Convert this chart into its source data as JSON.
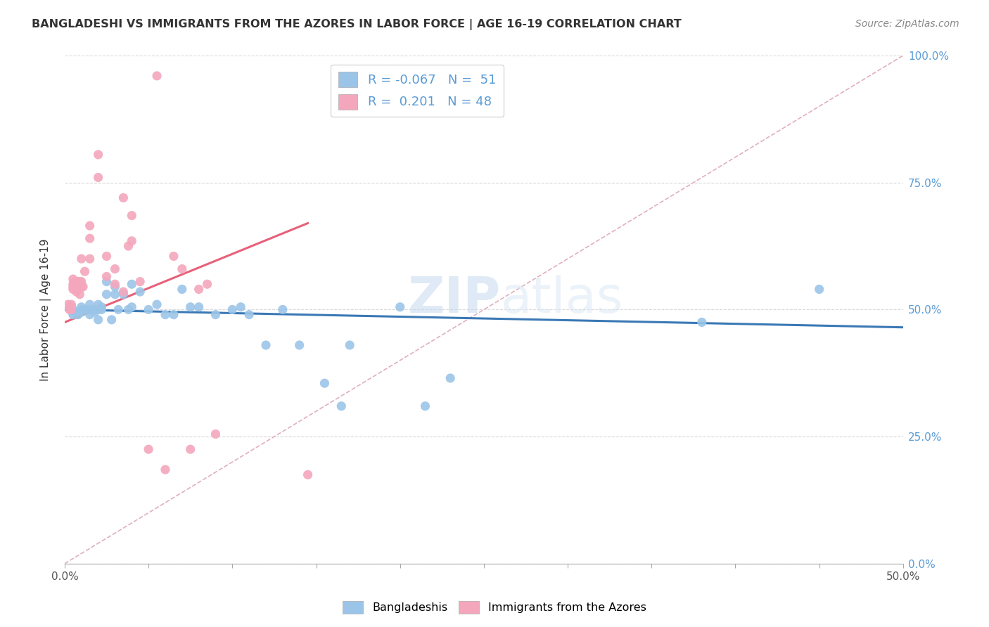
{
  "title": "BANGLADESHI VS IMMIGRANTS FROM THE AZORES IN LABOR FORCE | AGE 16-19 CORRELATION CHART",
  "source": "Source: ZipAtlas.com",
  "ylabel": "In Labor Force | Age 16-19",
  "xlim": [
    0.0,
    0.5
  ],
  "ylim": [
    0.0,
    1.0
  ],
  "xticks": [
    0.0,
    0.1,
    0.2,
    0.3,
    0.4,
    0.5
  ],
  "xtick_labels": [
    "0.0%",
    "",
    "",
    "",
    "",
    "50.0%"
  ],
  "ytick_labels_right": [
    "0.0%",
    "25.0%",
    "50.0%",
    "75.0%",
    "100.0%"
  ],
  "ytick_positions_right": [
    0.0,
    0.25,
    0.5,
    0.75,
    1.0
  ],
  "blue_color": "#9bc5e8",
  "pink_color": "#f4a7bc",
  "blue_line_color": "#3a78b5",
  "pink_line_color": "#e8607a",
  "diag_line_color": "#e0b0bc",
  "watermark_zip": "ZIP",
  "watermark_atlas": "atlas",
  "blue_scatter_x": [
    0.005,
    0.005,
    0.005,
    0.008,
    0.01,
    0.01,
    0.01,
    0.012,
    0.015,
    0.015,
    0.015,
    0.018,
    0.018,
    0.02,
    0.02,
    0.02,
    0.022,
    0.022,
    0.025,
    0.025,
    0.028,
    0.03,
    0.03,
    0.032,
    0.035,
    0.038,
    0.04,
    0.04,
    0.045,
    0.05,
    0.055,
    0.06,
    0.065,
    0.07,
    0.075,
    0.08,
    0.09,
    0.1,
    0.105,
    0.11,
    0.12,
    0.13,
    0.14,
    0.155,
    0.165,
    0.17,
    0.2,
    0.215,
    0.23,
    0.38,
    0.45
  ],
  "blue_scatter_y": [
    0.49,
    0.495,
    0.5,
    0.49,
    0.5,
    0.505,
    0.495,
    0.5,
    0.5,
    0.49,
    0.51,
    0.495,
    0.5,
    0.48,
    0.5,
    0.51,
    0.5,
    0.505,
    0.555,
    0.53,
    0.48,
    0.545,
    0.53,
    0.5,
    0.53,
    0.5,
    0.55,
    0.505,
    0.535,
    0.5,
    0.51,
    0.49,
    0.49,
    0.54,
    0.505,
    0.505,
    0.49,
    0.5,
    0.505,
    0.49,
    0.43,
    0.5,
    0.43,
    0.355,
    0.31,
    0.43,
    0.505,
    0.31,
    0.365,
    0.475,
    0.54
  ],
  "pink_scatter_x": [
    0.002,
    0.003,
    0.003,
    0.003,
    0.004,
    0.004,
    0.004,
    0.005,
    0.005,
    0.005,
    0.005,
    0.006,
    0.007,
    0.008,
    0.008,
    0.008,
    0.009,
    0.009,
    0.01,
    0.01,
    0.01,
    0.011,
    0.012,
    0.015,
    0.015,
    0.015,
    0.02,
    0.02,
    0.025,
    0.025,
    0.03,
    0.03,
    0.035,
    0.035,
    0.038,
    0.04,
    0.04,
    0.045,
    0.05,
    0.055,
    0.06,
    0.065,
    0.07,
    0.075,
    0.08,
    0.085,
    0.09,
    0.145
  ],
  "pink_scatter_y": [
    0.51,
    0.5,
    0.5,
    0.505,
    0.51,
    0.5,
    0.505,
    0.56,
    0.55,
    0.545,
    0.54,
    0.555,
    0.535,
    0.555,
    0.545,
    0.54,
    0.53,
    0.555,
    0.6,
    0.555,
    0.545,
    0.545,
    0.575,
    0.665,
    0.64,
    0.6,
    0.805,
    0.76,
    0.605,
    0.565,
    0.58,
    0.55,
    0.72,
    0.535,
    0.625,
    0.685,
    0.635,
    0.555,
    0.225,
    0.96,
    0.185,
    0.605,
    0.58,
    0.225,
    0.54,
    0.55,
    0.255,
    0.175
  ],
  "blue_line_x0": 0.0,
  "blue_line_x1": 0.5,
  "blue_line_y0": 0.5,
  "blue_line_y1": 0.465,
  "pink_line_x0": 0.0,
  "pink_line_x1": 0.145,
  "pink_line_y0": 0.475,
  "pink_line_y1": 0.67
}
